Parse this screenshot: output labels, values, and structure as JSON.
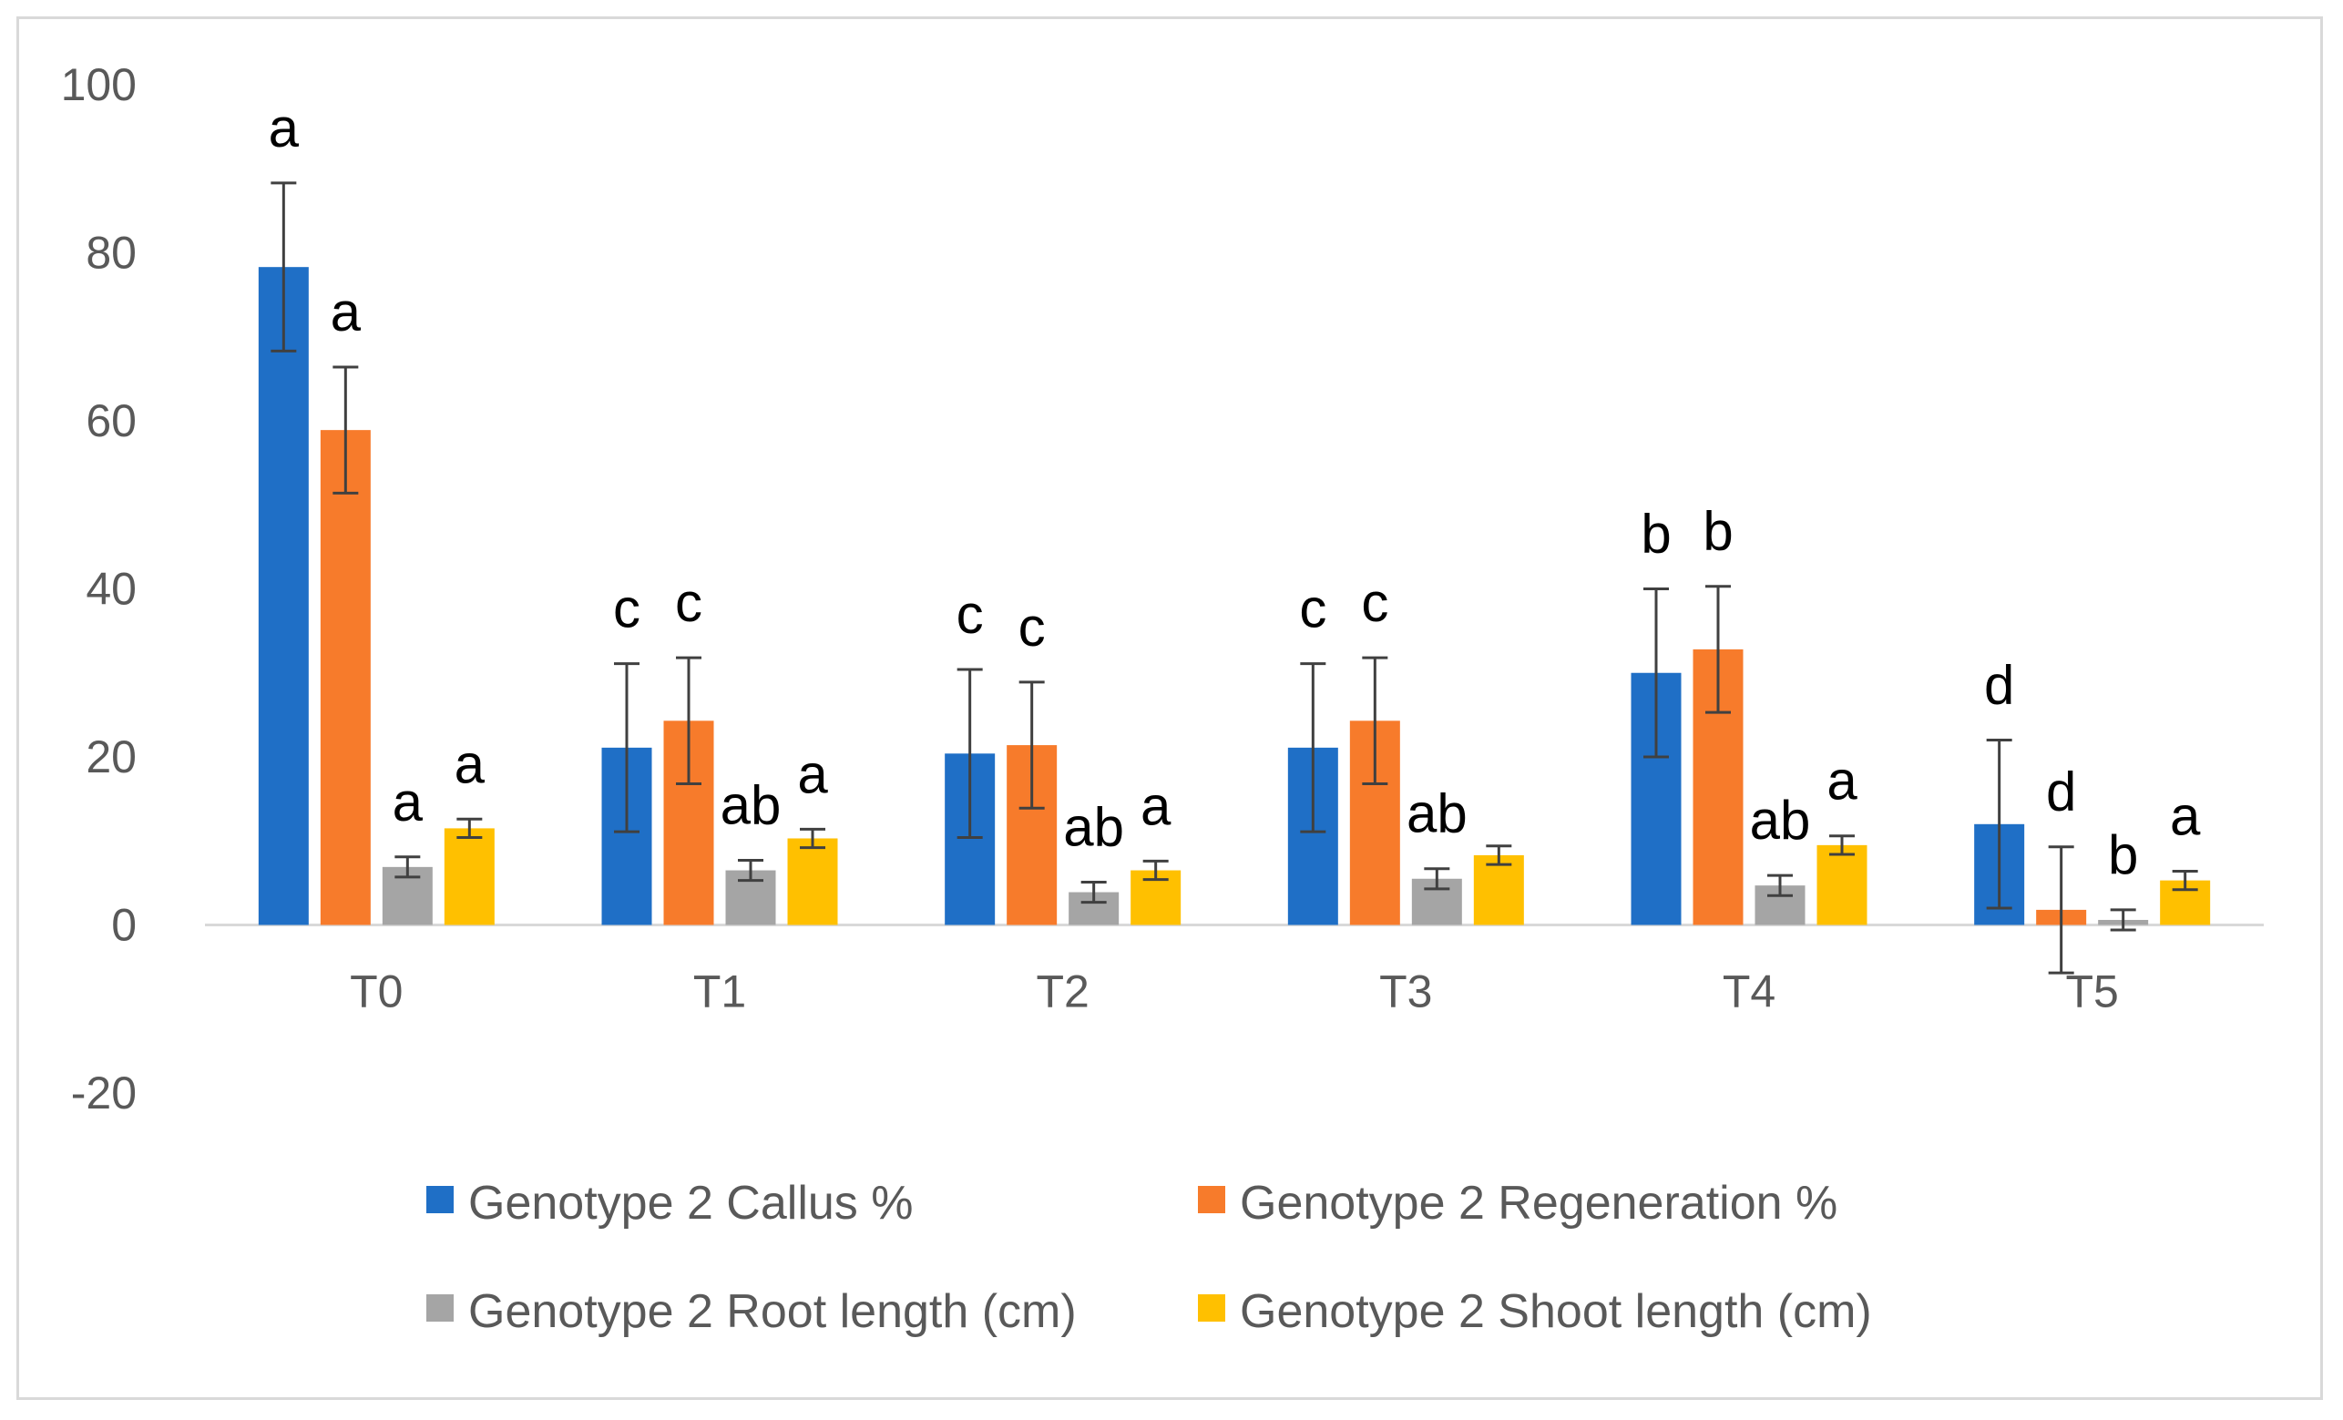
{
  "chart_data": {
    "type": "bar",
    "title": "",
    "xlabel": "",
    "ylabel": "",
    "ylim": [
      -20,
      100
    ],
    "yticks": [
      -20,
      0,
      20,
      40,
      60,
      80,
      100
    ],
    "grid": false,
    "legend_position": "bottom",
    "categories": [
      "T0",
      "T1",
      "T2",
      "T3",
      "T4",
      "T5"
    ],
    "series": [
      {
        "name": "Genotype 2 Callus %",
        "color": "#1f6fc6",
        "values": [
          78.3,
          21.1,
          20.4,
          21.1,
          30.0,
          12.0
        ],
        "errors": [
          10.0,
          10.0,
          10.0,
          10.0,
          10.0,
          10.0
        ],
        "letters": [
          "a",
          "c",
          "c",
          "c",
          "b",
          "d"
        ]
      },
      {
        "name": "Genotype 2 Regeneration %",
        "color": "#f77b2b",
        "values": [
          58.9,
          24.3,
          21.4,
          24.3,
          32.8,
          1.8
        ],
        "errors": [
          7.5,
          7.5,
          7.5,
          7.5,
          7.5,
          7.5
        ],
        "letters": [
          "a",
          "c",
          "c",
          "c",
          "b",
          "d"
        ]
      },
      {
        "name": "Genotype 2 Root length (cm)",
        "color": "#a5a5a5",
        "values": [
          6.9,
          6.5,
          3.9,
          5.5,
          4.7,
          0.6
        ],
        "errors": [
          1.2,
          1.2,
          1.2,
          1.2,
          1.2,
          1.2
        ],
        "letters": [
          "a",
          "ab",
          "ab",
          "ab",
          "ab",
          "b"
        ]
      },
      {
        "name": "Genotype 2 Shoot length (cm)",
        "color": "#ffc000",
        "values": [
          11.5,
          10.3,
          6.5,
          8.3,
          9.5,
          5.3
        ],
        "errors": [
          1.1,
          1.1,
          1.1,
          1.1,
          1.1,
          1.1
        ],
        "letters": [
          "a",
          "a",
          "a",
          "",
          "a",
          "a"
        ]
      }
    ]
  }
}
